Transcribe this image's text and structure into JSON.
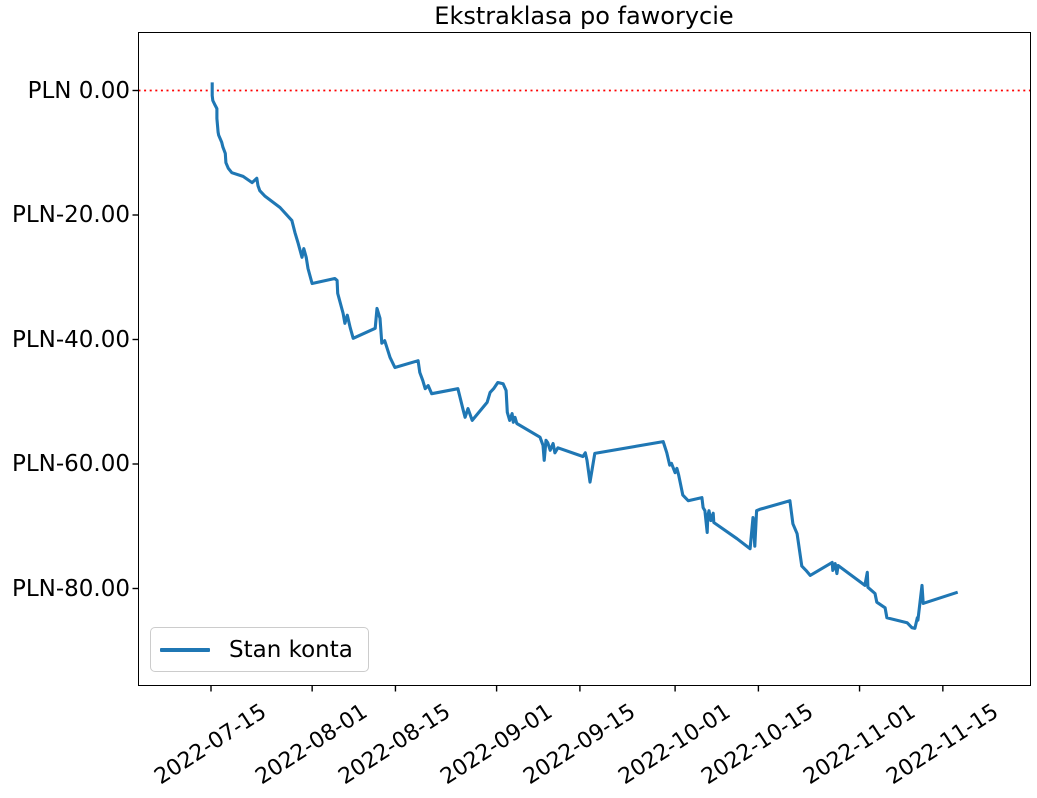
{
  "chart_data": {
    "type": "line",
    "title": "Ekstraklasa po faworycie",
    "xlabel": "",
    "ylabel": "",
    "grid": false,
    "background_color": "#ffffff",
    "x_axis": {
      "unit": "date",
      "day0_date": "2022-07-15",
      "tick_labels": [
        "2022-07-15",
        "2022-08-01",
        "2022-08-15",
        "2022-09-01",
        "2022-09-15",
        "2022-10-01",
        "2022-10-15",
        "2022-11-01",
        "2022-11-15"
      ],
      "tick_day_offsets": [
        0,
        17,
        31,
        48,
        62,
        78,
        92,
        109,
        123
      ],
      "label_rotation_deg": 33
    },
    "y_axis": {
      "currency": "PLN",
      "tick_labels": [
        "PLN 0.00",
        "PLN-20.00",
        "PLN-40.00",
        "PLN-60.00",
        "PLN-80.00"
      ],
      "tick_values": [
        0,
        -20,
        -40,
        -60,
        -80
      ]
    },
    "ylim": [
      -95.6,
      9.3
    ],
    "xlim_day_offsets": [
      -12.3,
      137.7
    ],
    "zero_line": {
      "value": 0,
      "color": "#ff0000",
      "linestyle": "dotted"
    },
    "legend": {
      "location": "lower left",
      "entries": [
        "Stan konta"
      ]
    },
    "series": [
      {
        "name": "Stan konta",
        "color": "#1f77b4",
        "points_day_offset_and_value": [
          [
            0.2,
            1.3
          ],
          [
            0.2,
            -0.8
          ],
          [
            0.3,
            -1.6
          ],
          [
            0.7,
            -2.4
          ],
          [
            1.0,
            -2.9
          ],
          [
            1.0,
            -4.5
          ],
          [
            1.2,
            -6.7
          ],
          [
            1.3,
            -7.2
          ],
          [
            1.8,
            -8.3
          ],
          [
            2.0,
            -9.1
          ],
          [
            2.4,
            -10.1
          ],
          [
            2.5,
            -11.6
          ],
          [
            2.9,
            -12.5
          ],
          [
            3.5,
            -13.2
          ],
          [
            5.4,
            -13.8
          ],
          [
            6.9,
            -14.8
          ],
          [
            7.7,
            -14.1
          ],
          [
            7.9,
            -15.3
          ],
          [
            8.2,
            -16.1
          ],
          [
            9.1,
            -17.0
          ],
          [
            11.6,
            -18.8
          ],
          [
            13.6,
            -20.9
          ],
          [
            14.1,
            -22.8
          ],
          [
            14.6,
            -24.4
          ],
          [
            15.3,
            -26.8
          ],
          [
            15.6,
            -25.4
          ],
          [
            16.0,
            -26.8
          ],
          [
            16.3,
            -28.6
          ],
          [
            17.0,
            -31.0
          ],
          [
            20.8,
            -30.2
          ],
          [
            21.2,
            -30.5
          ],
          [
            21.3,
            -32.6
          ],
          [
            22.2,
            -35.8
          ],
          [
            22.5,
            -37.4
          ],
          [
            22.9,
            -36.1
          ],
          [
            23.4,
            -38.1
          ],
          [
            23.9,
            -39.8
          ],
          [
            27.6,
            -38.2
          ],
          [
            27.9,
            -35.0
          ],
          [
            28.4,
            -36.6
          ],
          [
            28.7,
            -40.6
          ],
          [
            29.2,
            -40.2
          ],
          [
            29.6,
            -41.4
          ],
          [
            30.1,
            -42.9
          ],
          [
            30.9,
            -44.5
          ],
          [
            34.8,
            -43.4
          ],
          [
            35.1,
            -45.3
          ],
          [
            35.6,
            -46.6
          ],
          [
            36.0,
            -47.9
          ],
          [
            36.5,
            -47.4
          ],
          [
            37.1,
            -48.7
          ],
          [
            41.5,
            -47.9
          ],
          [
            42.4,
            -51.4
          ],
          [
            42.7,
            -52.5
          ],
          [
            43.2,
            -51.1
          ],
          [
            43.9,
            -53.0
          ],
          [
            46.4,
            -50.1
          ],
          [
            46.9,
            -48.5
          ],
          [
            47.5,
            -47.9
          ],
          [
            48.2,
            -46.9
          ],
          [
            49.1,
            -47.1
          ],
          [
            49.6,
            -48.2
          ],
          [
            49.8,
            -51.7
          ],
          [
            50.2,
            -53.0
          ],
          [
            50.6,
            -51.9
          ],
          [
            50.8,
            -53.3
          ],
          [
            51.1,
            -52.5
          ],
          [
            51.4,
            -53.5
          ],
          [
            55.3,
            -55.7
          ],
          [
            55.8,
            -57.0
          ],
          [
            56.0,
            -59.4
          ],
          [
            56.3,
            -56.2
          ],
          [
            56.6,
            -56.6
          ],
          [
            57.0,
            -57.8
          ],
          [
            57.5,
            -56.7
          ],
          [
            57.8,
            -58.2
          ],
          [
            58.3,
            -57.4
          ],
          [
            62.5,
            -58.8
          ],
          [
            62.9,
            -58.2
          ],
          [
            63.2,
            -59.4
          ],
          [
            63.7,
            -62.9
          ],
          [
            64.5,
            -58.3
          ],
          [
            76.0,
            -56.4
          ],
          [
            76.6,
            -58.2
          ],
          [
            77.1,
            -60.2
          ],
          [
            77.4,
            -59.9
          ],
          [
            78.0,
            -61.4
          ],
          [
            78.3,
            -60.7
          ],
          [
            78.6,
            -61.8
          ],
          [
            79.3,
            -65.0
          ],
          [
            80.2,
            -65.9
          ],
          [
            82.5,
            -65.4
          ],
          [
            82.7,
            -67.0
          ],
          [
            83.0,
            -67.5
          ],
          [
            83.4,
            -71.0
          ],
          [
            83.5,
            -68.3
          ],
          [
            83.7,
            -67.5
          ],
          [
            84.0,
            -69.1
          ],
          [
            84.4,
            -67.9
          ],
          [
            84.5,
            -69.4
          ],
          [
            88.4,
            -72.0
          ],
          [
            90.3,
            -73.4
          ],
          [
            90.6,
            -73.6
          ],
          [
            91.1,
            -68.6
          ],
          [
            91.4,
            -73.2
          ],
          [
            91.7,
            -67.5
          ],
          [
            92.2,
            -67.3
          ],
          [
            97.3,
            -65.9
          ],
          [
            97.8,
            -69.6
          ],
          [
            98.5,
            -71.2
          ],
          [
            99.3,
            -76.4
          ],
          [
            100.0,
            -77.1
          ],
          [
            100.7,
            -77.9
          ],
          [
            104.4,
            -75.8
          ],
          [
            104.5,
            -77.1
          ],
          [
            104.9,
            -76.0
          ],
          [
            105.2,
            -77.6
          ],
          [
            105.4,
            -76.3
          ],
          [
            109.9,
            -79.5
          ],
          [
            110.3,
            -77.4
          ],
          [
            110.4,
            -79.8
          ],
          [
            111.6,
            -80.8
          ],
          [
            111.9,
            -82.2
          ],
          [
            113.3,
            -83.1
          ],
          [
            113.6,
            -84.7
          ],
          [
            117.0,
            -85.5
          ],
          [
            117.8,
            -86.3
          ],
          [
            118.3,
            -86.4
          ],
          [
            118.7,
            -84.7
          ],
          [
            118.8,
            -85.1
          ],
          [
            119.5,
            -79.5
          ],
          [
            119.7,
            -82.4
          ],
          [
            120.0,
            -82.3
          ],
          [
            125.5,
            -80.6
          ]
        ]
      }
    ]
  }
}
